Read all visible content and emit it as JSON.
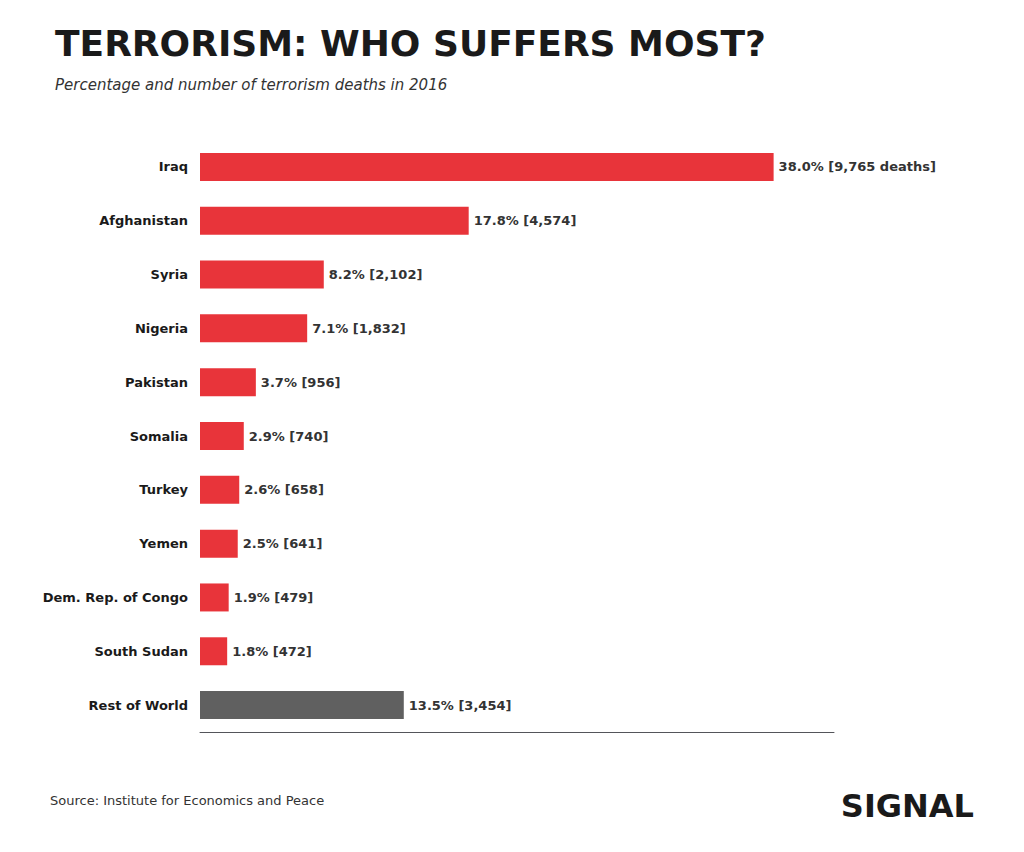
{
  "chart_data": {
    "type": "bar",
    "orientation": "horizontal",
    "title": "TERRORISM: WHO SUFFERS MOST?",
    "subtitle": "Percentage and number of terrorism deaths in 2016",
    "categories": [
      "Iraq",
      "Afghanistan",
      "Syria",
      "Nigeria",
      "Pakistan",
      "Somalia",
      "Turkey",
      "Yemen",
      "Dem. Rep. of Congo",
      "South Sudan",
      "Rest of World"
    ],
    "values": [
      38.0,
      17.8,
      8.2,
      7.1,
      3.7,
      2.9,
      2.6,
      2.5,
      1.9,
      1.8,
      13.5
    ],
    "value_labels": [
      "38.0% [9,765 deaths]",
      "17.8% [4,574]",
      "8.2% [2,102]",
      "7.1% [1,832]",
      "3.7% [956]",
      "2.9% [740]",
      "2.6% [658]",
      "2.5% [641]",
      "1.9% [479]",
      "1.8% [472]",
      "13.5% [3,454]"
    ],
    "data_labels": true,
    "colors": [
      "#e8343a",
      "#e8343a",
      "#e8343a",
      "#e8343a",
      "#e8343a",
      "#e8343a",
      "#e8343a",
      "#e8343a",
      "#e8343a",
      "#e8343a",
      "#606060"
    ],
    "xlim": [
      0,
      42
    ],
    "tick_labels": false,
    "grid": false,
    "annotations": [
      "Source: Institute for Economics and Peace",
      "SIGNAL"
    ]
  }
}
